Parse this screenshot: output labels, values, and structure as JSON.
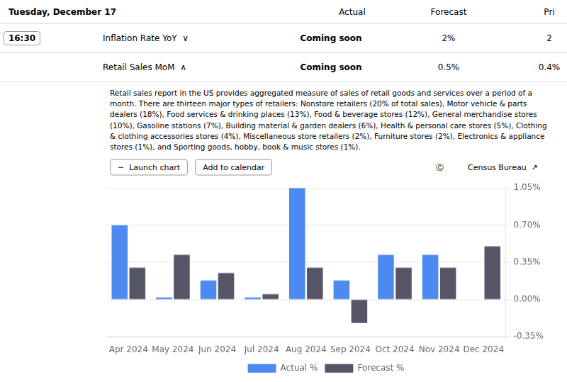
{
  "chart_data": {
    "type": "bar",
    "annotations": [
      "Tuesday, December 17",
      "Actual",
      "Forecast",
      "Pri",
      "16:30",
      "Inflation Rate YoY  ∨",
      "Coming soon",
      "2%",
      "2",
      "Retail Sales MoM  ∧",
      "Coming soon",
      "0.5%",
      "0.4%",
      "Retail sales report in the US provides aggregated measure of sales of retail goods and services over a period of a month. There are thirteen major types of retailers: Nonstore retailers (20% of total sales), Motor vehicle & parts dealers (18%), Food services & drinking places (13%), Food & beverage stores (12%), General merchandise stores (10%), Gasoline stations (7%), Building material & garden dealers (6%), Health & personal care stores (5%), Clothing & clothing accessories stores (4%), Miscellaneous store retailers (2%), Furniture stores (2%), Electronics & appliance stores (1%), and Sporting goods, hobby, book & music stores (1%).",
      "∼  Launch chart",
      "Add to calendar",
      "Ⓒ",
      "Census Bureau  ↗"
    ],
    "categories": [
      "Apr 2024",
      "May 2024",
      "Jun 2024",
      "Jul 2024",
      "Aug 2024",
      "Sep 2024",
      "Oct 2024",
      "Nov 2024",
      "Dec 2024"
    ],
    "series": [
      {
        "name": "Actual %",
        "color": "#4d8af0",
        "values": [
          0.7,
          0.02,
          0.18,
          0.02,
          1.05,
          0.18,
          0.42,
          0.42,
          null
        ]
      },
      {
        "name": "Forecast %",
        "color": "#555567",
        "values": [
          0.3,
          0.42,
          0.25,
          0.05,
          0.3,
          -0.22,
          0.3,
          0.3,
          0.5
        ]
      }
    ],
    "ylim": [
      -0.35,
      1.05
    ],
    "yticks": [
      {
        "value": -0.35,
        "label": "-0.35%"
      },
      {
        "value": 0.0,
        "label": "0.00%"
      },
      {
        "value": 0.35,
        "label": "0.35%"
      },
      {
        "value": 0.7,
        "label": "0.70%"
      },
      {
        "value": 1.05,
        "label": "1.05%"
      }
    ],
    "grid": true,
    "legend": "bottom"
  }
}
